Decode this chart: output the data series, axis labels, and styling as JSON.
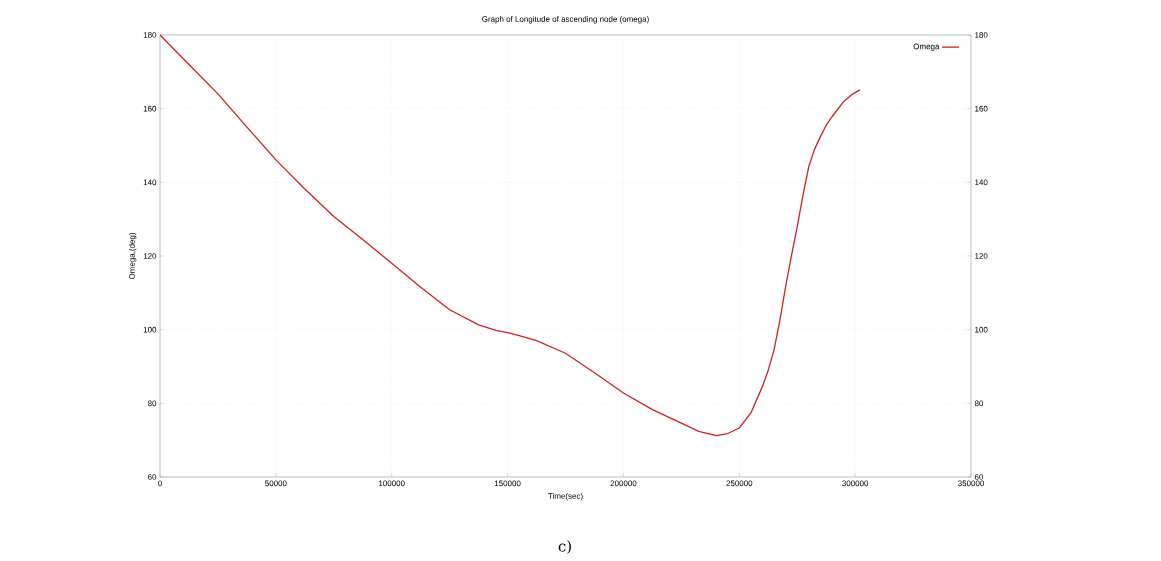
{
  "chart_data": {
    "type": "line",
    "title": "Graph of Longitude of ascending node (omega)",
    "xlabel": "Time(sec)",
    "ylabel": "Omega,(deg)",
    "annotations": [
      "c)"
    ],
    "series": [
      {
        "name": "Omega",
        "color": "#cc2222",
        "x": [
          0,
          12500,
          25000,
          37500,
          50000,
          62500,
          75000,
          87500,
          100000,
          112500,
          125000,
          137500,
          145000,
          150000,
          155000,
          162500,
          175000,
          187500,
          200000,
          212500,
          225000,
          232500,
          240000,
          245000,
          250000,
          255000,
          260000,
          262500,
          265000,
          267500,
          270000,
          272500,
          275000,
          277500,
          280000,
          282500,
          285000,
          287500,
          290000,
          295000,
          298500,
          302000
        ],
        "values": [
          180,
          172,
          164,
          155,
          146.1,
          138.2,
          130.7,
          124.5,
          118,
          111.5,
          105.4,
          101.3,
          99.8,
          99.2,
          98.4,
          97,
          93.6,
          88.3,
          82.8,
          78.3,
          74.6,
          72.4,
          71.2,
          71.8,
          73.3,
          77.4,
          84.6,
          89,
          94.5,
          102.5,
          111.7,
          120,
          128,
          136.5,
          144.3,
          149,
          152.4,
          155.5,
          157.8,
          161.9,
          163.8,
          165.1
        ]
      }
    ],
    "xlim": [
      0,
      350000
    ],
    "xticks": [
      0,
      50000,
      100000,
      150000,
      200000,
      250000,
      300000,
      350000
    ],
    "ylim": [
      60,
      180
    ],
    "yticks": [
      60,
      80,
      100,
      120,
      140,
      160,
      180
    ],
    "y2lim": [
      60,
      180
    ],
    "y2ticks": [
      60,
      80,
      100,
      120,
      140,
      160,
      180
    ],
    "grid": true,
    "legend": "top right",
    "marker": "none",
    "line_style": "solid"
  }
}
